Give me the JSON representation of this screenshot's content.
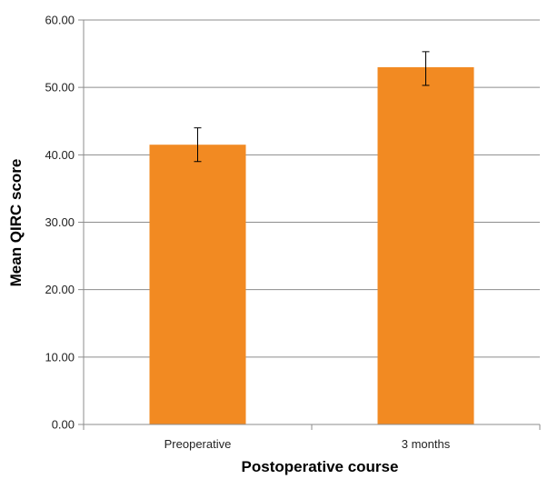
{
  "chart_data": {
    "type": "bar",
    "categories": [
      "Preoperative",
      "3 months"
    ],
    "values": [
      41.5,
      53.0
    ],
    "error_bars": [
      {
        "low": 39.0,
        "high": 44.0
      },
      {
        "low": 50.3,
        "high": 55.3
      }
    ],
    "xlabel": "Postoperative course",
    "ylabel": "Mean QIRC score",
    "ylim": [
      0,
      60
    ],
    "yticks": [
      "0.00",
      "10.00",
      "20.00",
      "30.00",
      "40.00",
      "50.00",
      "60.00"
    ],
    "grid": true,
    "legend": "none",
    "colors": {
      "bar": "#f28a22",
      "grid": "#8c8c8c",
      "axis": "#8c8c8c",
      "error": "#000000"
    }
  }
}
